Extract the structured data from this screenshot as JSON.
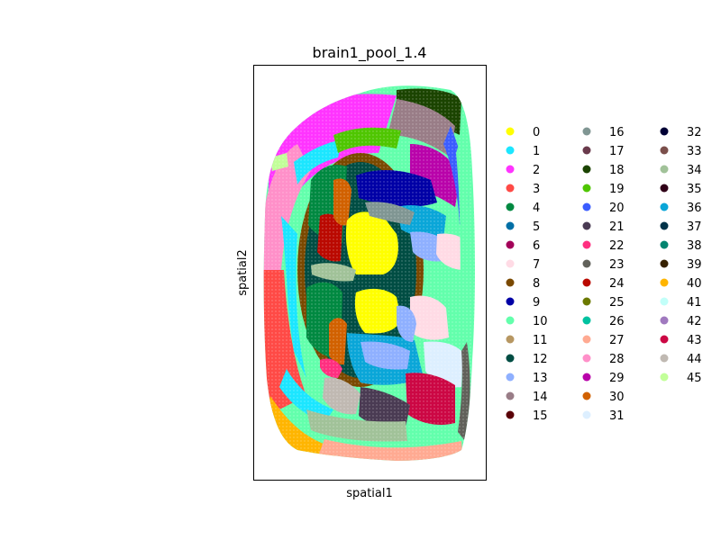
{
  "chart_data": {
    "type": "scatter",
    "title": "brain1_pool_1.4",
    "xlabel": "spatial1",
    "ylabel": "spatial2",
    "ticks": "none",
    "grid": false,
    "legend_placement": "right",
    "legend_columns": 3,
    "categories": [
      {
        "label": "0",
        "color": "#ffff00"
      },
      {
        "label": "1",
        "color": "#1ce6ff"
      },
      {
        "label": "2",
        "color": "#ff34ff"
      },
      {
        "label": "3",
        "color": "#ff4a46"
      },
      {
        "label": "4",
        "color": "#008941"
      },
      {
        "label": "5",
        "color": "#006fa6"
      },
      {
        "label": "6",
        "color": "#a30059"
      },
      {
        "label": "7",
        "color": "#ffdbe5"
      },
      {
        "label": "8",
        "color": "#7a4900"
      },
      {
        "label": "9",
        "color": "#0000a6"
      },
      {
        "label": "10",
        "color": "#63ffac"
      },
      {
        "label": "11",
        "color": "#b79762"
      },
      {
        "label": "12",
        "color": "#004d43"
      },
      {
        "label": "13",
        "color": "#8fb0ff"
      },
      {
        "label": "14",
        "color": "#997d87"
      },
      {
        "label": "15",
        "color": "#5a0007"
      },
      {
        "label": "16",
        "color": "#809693"
      },
      {
        "label": "17",
        "color": "#6a3a4c"
      },
      {
        "label": "18",
        "color": "#1b4400"
      },
      {
        "label": "19",
        "color": "#4fc601"
      },
      {
        "label": "20",
        "color": "#3b5dff"
      },
      {
        "label": "21",
        "color": "#4a3b53"
      },
      {
        "label": "22",
        "color": "#ff2f80"
      },
      {
        "label": "23",
        "color": "#61615a"
      },
      {
        "label": "24",
        "color": "#ba0900"
      },
      {
        "label": "25",
        "color": "#6b7900"
      },
      {
        "label": "26",
        "color": "#00c2a0"
      },
      {
        "label": "27",
        "color": "#ffaa92"
      },
      {
        "label": "28",
        "color": "#ff90c9"
      },
      {
        "label": "29",
        "color": "#b903aa"
      },
      {
        "label": "30",
        "color": "#d16100"
      },
      {
        "label": "31",
        "color": "#ddefff"
      },
      {
        "label": "32",
        "color": "#000035"
      },
      {
        "label": "33",
        "color": "#7b4f4b"
      },
      {
        "label": "34",
        "color": "#a1c299"
      },
      {
        "label": "35",
        "color": "#300018"
      },
      {
        "label": "36",
        "color": "#0aa6d8"
      },
      {
        "label": "37",
        "color": "#013349"
      },
      {
        "label": "38",
        "color": "#00846f"
      },
      {
        "label": "39",
        "color": "#372101"
      },
      {
        "label": "40",
        "color": "#ffb500"
      },
      {
        "label": "41",
        "color": "#c2fff9"
      },
      {
        "label": "42",
        "color": "#a079bf"
      },
      {
        "label": "43",
        "color": "#cc0744"
      },
      {
        "label": "44",
        "color": "#c0b9b2"
      },
      {
        "label": "45",
        "color": "#c2ff99"
      }
    ]
  }
}
